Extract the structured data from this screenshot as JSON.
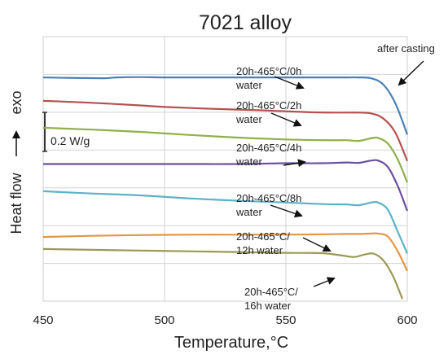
{
  "chart_data": {
    "type": "line",
    "title": "7021 alloy",
    "xlabel": "Temperature,°C",
    "ylabel": "Heat flow",
    "ylabel_arrow_text": "exo",
    "xlim": [
      450,
      600
    ],
    "x_ticks": [
      450,
      500,
      550,
      600
    ],
    "grid": true,
    "scale_bar": {
      "label": "0.2 W/g",
      "value": 0.2
    },
    "series": [
      {
        "name": "after casting",
        "color": "#4a7fb5",
        "x": [
          450,
          460,
          475,
          480,
          490,
          500,
          520,
          540,
          560,
          575,
          580,
          585,
          590,
          595,
          600
        ],
        "y": [
          5.92,
          5.91,
          5.9,
          5.92,
          5.93,
          5.92,
          5.92,
          5.92,
          5.92,
          5.92,
          5.92,
          5.9,
          5.74,
          5.25,
          4.41
        ]
      },
      {
        "name": "20h-465°C/0h water",
        "color": "#b5504e",
        "x": [
          450,
          470,
          490,
          500,
          520,
          540,
          560,
          570,
          580,
          585,
          590,
          595,
          600
        ],
        "y": [
          5.3,
          5.25,
          5.18,
          5.14,
          5.09,
          5.05,
          5.0,
          4.99,
          4.99,
          4.97,
          4.84,
          4.47,
          3.71
        ]
      },
      {
        "name": "20h-465°C/2h water",
        "color": "#8fb04a",
        "x": [
          450,
          470,
          490,
          510,
          530,
          550,
          565,
          575,
          580,
          585,
          588,
          592,
          596,
          600
        ],
        "y": [
          4.59,
          4.54,
          4.48,
          4.4,
          4.33,
          4.28,
          4.26,
          4.26,
          4.24,
          4.31,
          4.32,
          4.17,
          3.76,
          3.14
        ]
      },
      {
        "name": "20h-465°C/4h water",
        "color": "#6b4fa0",
        "x": [
          450,
          470,
          490,
          510,
          530,
          550,
          565,
          575,
          580,
          585,
          588,
          592,
          596,
          600
        ],
        "y": [
          3.63,
          3.63,
          3.63,
          3.63,
          3.63,
          3.65,
          3.65,
          3.67,
          3.66,
          3.72,
          3.72,
          3.55,
          3.06,
          2.39
        ]
      },
      {
        "name": "20h-465°C/8h water",
        "color": "#5bb3c8",
        "x": [
          450,
          470,
          490,
          510,
          530,
          550,
          565,
          575,
          580,
          585,
          588,
          592,
          596,
          600
        ],
        "y": [
          2.91,
          2.85,
          2.8,
          2.72,
          2.66,
          2.61,
          2.57,
          2.56,
          2.54,
          2.61,
          2.61,
          2.42,
          1.85,
          1.26
        ]
      },
      {
        "name": "20h-465°C/12h water",
        "color": "#e29647",
        "x": [
          450,
          470,
          490,
          510,
          530,
          550,
          565,
          575,
          580,
          585,
          588,
          592,
          596,
          600
        ],
        "y": [
          1.7,
          1.73,
          1.75,
          1.76,
          1.76,
          1.76,
          1.77,
          1.78,
          1.78,
          1.79,
          1.79,
          1.71,
          1.33,
          0.8
        ]
      },
      {
        "name": "20h-465°C/16h water",
        "color": "#9a9a56",
        "x": [
          450,
          470,
          490,
          510,
          530,
          550,
          565,
          572,
          578,
          582,
          586,
          590,
          594,
          598
        ],
        "y": [
          1.38,
          1.36,
          1.34,
          1.32,
          1.3,
          1.28,
          1.27,
          1.22,
          1.17,
          1.23,
          1.26,
          1.09,
          0.68,
          0.06
        ]
      }
    ],
    "annotations": [
      {
        "lines": [
          "after casting"
        ],
        "series": "after casting"
      },
      {
        "lines": [
          "20h-465°C/0h",
          "water"
        ],
        "series": "20h-465°C/0h water"
      },
      {
        "lines": [
          "20h-465°C/2h",
          "water"
        ],
        "series": "20h-465°C/2h water"
      },
      {
        "lines": [
          "20h-465°C/4h",
          "water"
        ],
        "series": "20h-465°C/4h water"
      },
      {
        "lines": [
          "20h-465°C/8h",
          "water"
        ],
        "series": "20h-465°C/8h water"
      },
      {
        "lines": [
          "20h-465°C/",
          "12h water"
        ],
        "series": "20h-465°C/12h water"
      },
      {
        "lines": [
          "20h-465°C/",
          "16h water"
        ],
        "series": "20h-465°C/16h water"
      }
    ]
  }
}
